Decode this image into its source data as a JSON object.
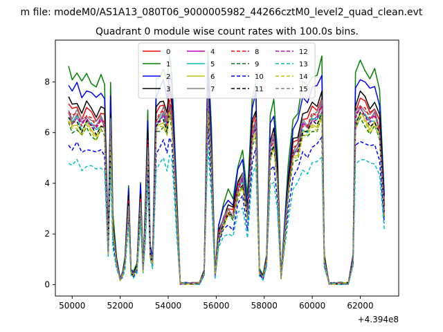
{
  "suptitle": "m file: modeM0/AS1A13_080T06_9000005982_44266cztM0_level2_quad_clean.evt",
  "chart_data": {
    "type": "line",
    "title": "Quadrant 0 module wise count rates with 100.0s bins.",
    "xlabel": "",
    "ylabel": "",
    "offset_text": "+4.394e8",
    "xlim": [
      49300,
      63600
    ],
    "ylim": [
      -0.45,
      9.65
    ],
    "x_ticks": [
      50000,
      52000,
      54000,
      56000,
      58000,
      60000,
      62000
    ],
    "x_tick_labels": [
      "50000",
      "52000",
      "54000",
      "56000",
      "58000",
      "60000",
      "62000"
    ],
    "y_ticks": [
      0,
      2,
      4,
      6,
      8
    ],
    "y_tick_labels": [
      "0",
      "2",
      "4",
      "6",
      "8"
    ],
    "grid": false,
    "legend_position": "top-center",
    "profile": {
      "x": [
        49850,
        50000,
        50200,
        50400,
        50600,
        50800,
        51000,
        51200,
        51350,
        51500,
        51600,
        51700,
        51850,
        52000,
        52100,
        52200,
        52350,
        52450,
        52550,
        52700,
        52850,
        52950,
        53050,
        53150,
        53250,
        53350,
        53500,
        53650,
        53800,
        53950,
        54050,
        54150,
        54250,
        54350,
        54500,
        54700,
        55000,
        55300,
        55500,
        55650,
        55800,
        55950,
        56100,
        56300,
        56500,
        56700,
        56900,
        57100,
        57300,
        57500,
        57650,
        57800,
        57950,
        58100,
        58250,
        58400,
        58550,
        58700,
        58850,
        59000,
        59200,
        59400,
        59600,
        59800,
        60000,
        60200,
        60400,
        60500,
        60700,
        60900,
        61200,
        61500,
        61700,
        61800,
        62000,
        62200,
        62400,
        62600,
        62800,
        63000
      ],
      "y": [
        7.0,
        6.7,
        6.9,
        6.5,
        6.8,
        6.6,
        6.4,
        6.7,
        6.5,
        1.4,
        6.5,
        2.2,
        0.9,
        0.2,
        0.4,
        0.9,
        3.3,
        0.5,
        0.4,
        0.7,
        3.4,
        0.6,
        2.6,
        5.7,
        1.3,
        0.9,
        6.6,
        6.8,
        7.0,
        6.5,
        7.4,
        6.9,
        5.0,
        3.0,
        0.05,
        0.05,
        0.05,
        0.05,
        0.5,
        7.6,
        5.0,
        0.4,
        2.0,
        2.6,
        3.0,
        2.8,
        3.9,
        4.3,
        2.8,
        6.1,
        6.6,
        0.5,
        0.3,
        1.0,
        5.5,
        5.9,
        4.3,
        0.3,
        2.0,
        3.8,
        5.4,
        5.6,
        6.5,
        6.4,
        6.8,
        6.8,
        7.3,
        1.0,
        0.05,
        0.05,
        0.05,
        0.05,
        1.0,
        6.8,
        7.2,
        7.0,
        6.7,
        6.9,
        6.3,
        3.0
      ]
    },
    "series": [
      {
        "label": "0",
        "color": "#ff0000",
        "dashed": false,
        "scale": 1.02
      },
      {
        "label": "1",
        "color": "#008000",
        "dashed": false,
        "scale": 1.22
      },
      {
        "label": "2",
        "color": "#0000ff",
        "dashed": false,
        "scale": 1.14
      },
      {
        "label": "3",
        "color": "#000000",
        "dashed": false,
        "scale": 1.05
      },
      {
        "label": "4",
        "color": "#bf00bf",
        "dashed": false,
        "scale": 0.97
      },
      {
        "label": "5",
        "color": "#00bfbf",
        "dashed": false,
        "scale": 0.95
      },
      {
        "label": "6",
        "color": "#bfbf00",
        "dashed": false,
        "scale": 0.93
      },
      {
        "label": "7",
        "color": "#808080",
        "dashed": false,
        "scale": 0.99
      },
      {
        "label": "8",
        "color": "#ff0000",
        "dashed": true,
        "scale": 0.98
      },
      {
        "label": "9",
        "color": "#008000",
        "dashed": true,
        "scale": 0.9
      },
      {
        "label": "10",
        "color": "#0000ff",
        "dashed": true,
        "scale": 0.8
      },
      {
        "label": "11",
        "color": "#000000",
        "dashed": true,
        "scale": 0.94
      },
      {
        "label": "12",
        "color": "#bf00bf",
        "dashed": true,
        "scale": 0.96
      },
      {
        "label": "13",
        "color": "#00bfbf",
        "dashed": true,
        "scale": 0.7
      },
      {
        "label": "14",
        "color": "#bfbf00",
        "dashed": true,
        "scale": 0.91
      },
      {
        "label": "15",
        "color": "#808080",
        "dashed": true,
        "scale": 0.97
      }
    ]
  }
}
